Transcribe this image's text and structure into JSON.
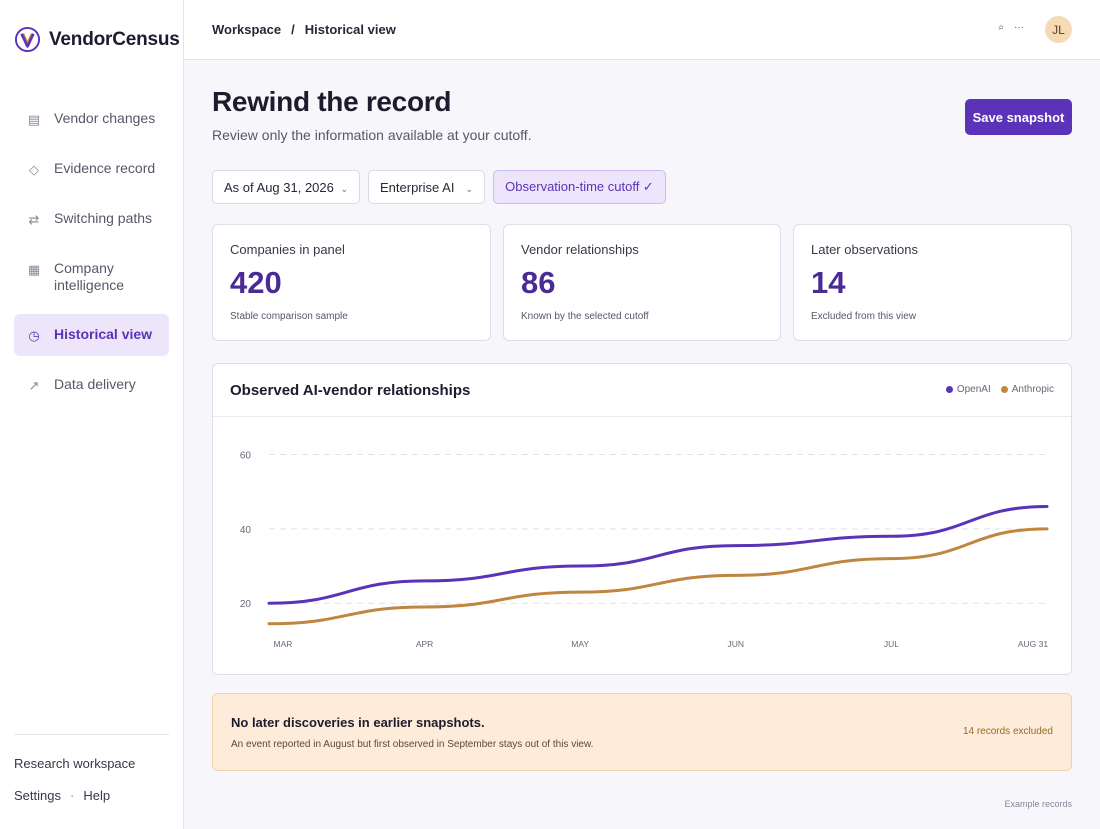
{
  "app": {
    "name": "VendorCensus"
  },
  "sidebar": {
    "items": [
      {
        "label": "Vendor changes",
        "icon": "list-icon"
      },
      {
        "label": "Evidence record",
        "icon": "diamond-icon"
      },
      {
        "label": "Switching paths",
        "icon": "switch-arrows-icon"
      },
      {
        "label": "Company intelligence",
        "icon": "grid-icon"
      },
      {
        "label": "Historical view",
        "icon": "clock-icon",
        "active": true
      },
      {
        "label": "Data delivery",
        "icon": "arrow-up-right-icon"
      }
    ],
    "footer": {
      "workspace": "Research workspace",
      "settings": "Settings",
      "separator": "·",
      "help": "Help"
    }
  },
  "topbar": {
    "breadcrumb_root": "Workspace",
    "breadcrumb_sep": "/",
    "breadcrumb_current": "Historical view",
    "search_glyph": "⌕",
    "more_glyph": "···",
    "avatar_initials": "JL"
  },
  "page": {
    "title": "Rewind the record",
    "subtitle": "Review only the information available at your cutoff.",
    "save_label": "Save snapshot"
  },
  "filters": {
    "date": "As of Aug 31, 2026",
    "segment": "Enterprise AI",
    "cutoff_toggle": "Observation-time cutoff ✓",
    "chevron": "⌄"
  },
  "stats": [
    {
      "label": "Companies in panel",
      "value": "420",
      "note": "Stable comparison sample"
    },
    {
      "label": "Vendor relationships",
      "value": "86",
      "note": "Known by the selected cutoff"
    },
    {
      "label": "Later observations",
      "value": "14",
      "note": "Excluded from this view"
    }
  ],
  "chart": {
    "title": "Observed AI-vendor relationships"
  },
  "chart_data": {
    "type": "line",
    "title": "Observed AI-vendor relationships",
    "x": [
      "MAR",
      "APR",
      "MAY",
      "JUN",
      "JUL",
      "AUG 31"
    ],
    "x_pos": [
      0,
      1,
      2,
      3,
      4,
      5
    ],
    "yticks": [
      20,
      40,
      60
    ],
    "ylim": [
      12,
      62
    ],
    "grid": true,
    "legend": "top-right",
    "series": [
      {
        "name": "OpenAI",
        "color": "#5a33b8",
        "x": [
          0,
          1,
          2,
          3,
          4,
          5
        ],
        "values": [
          20,
          26,
          30,
          35.5,
          38,
          46
        ]
      },
      {
        "name": "Anthropic",
        "color": "#c0853e",
        "x": [
          0,
          1,
          2,
          3,
          4,
          5
        ],
        "values": [
          14.5,
          19,
          23,
          27.5,
          32,
          40
        ]
      }
    ]
  },
  "callout": {
    "title": "No later discoveries in earlier snapshots.",
    "body": "An event reported in August but first observed in September stays out of this view.",
    "badge": "14 records excluded"
  },
  "footer_note": "Example records",
  "colors": {
    "accent": "#5a33b8",
    "openai": "#5a33b8",
    "anthropic": "#c0853e",
    "callout_bg": "#fcecd9"
  }
}
